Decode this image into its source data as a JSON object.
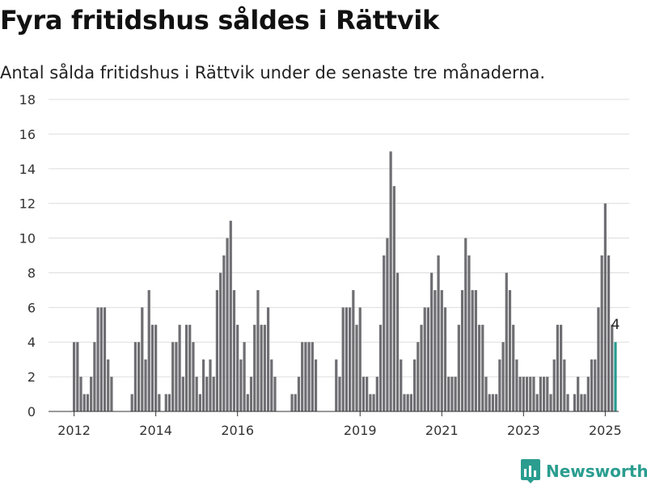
{
  "title": "Fyra fritidshus såldes i Rättvik",
  "subtitle": "Antal sålda fritidshus i Rättvik under de senaste tre månaderna.",
  "brand": {
    "name": "Newsworthy",
    "logo_icon": "newsworthy-logo-icon"
  },
  "colors": {
    "bar": "#6e6e73",
    "highlight": "#259a8f",
    "grid": "#dddddd",
    "axis": "#333333"
  },
  "chart_data": {
    "type": "bar",
    "xlabel": "",
    "ylabel": "",
    "ylim": [
      0,
      18
    ],
    "yticks": [
      0,
      2,
      4,
      6,
      8,
      10,
      12,
      14,
      16,
      18
    ],
    "xticks": [
      "2012",
      "2014",
      "2016",
      "2019",
      "2021",
      "2023",
      "2025"
    ],
    "grid": true,
    "start_period": "2012-01",
    "values": [
      4,
      4,
      2,
      1,
      1,
      2,
      4,
      6,
      6,
      6,
      3,
      2,
      null,
      null,
      null,
      null,
      null,
      1,
      4,
      4,
      6,
      3,
      7,
      5,
      5,
      1,
      null,
      1,
      1,
      4,
      4,
      5,
      2,
      5,
      5,
      4,
      2,
      1,
      3,
      2,
      3,
      2,
      7,
      8,
      9,
      10,
      11,
      7,
      5,
      3,
      4,
      1,
      2,
      5,
      7,
      5,
      5,
      6,
      3,
      2,
      null,
      null,
      null,
      null,
      1,
      1,
      2,
      4,
      4,
      4,
      4,
      3,
      null,
      null,
      null,
      null,
      null,
      3,
      2,
      6,
      6,
      6,
      7,
      5,
      6,
      2,
      2,
      1,
      1,
      2,
      5,
      9,
      10,
      15,
      13,
      8,
      3,
      1,
      1,
      1,
      3,
      4,
      5,
      6,
      6,
      8,
      7,
      9,
      7,
      6,
      2,
      2,
      2,
      5,
      7,
      10,
      9,
      7,
      7,
      5,
      5,
      2,
      1,
      1,
      1,
      3,
      4,
      8,
      7,
      5,
      3,
      2,
      2,
      2,
      2,
      2,
      1,
      2,
      2,
      2,
      1,
      3,
      5,
      5,
      3,
      1,
      null,
      1,
      2,
      1,
      1,
      2,
      3,
      3,
      6,
      9,
      12,
      9,
      5,
      4
    ],
    "highlight": {
      "value": 4,
      "label": "4"
    }
  }
}
